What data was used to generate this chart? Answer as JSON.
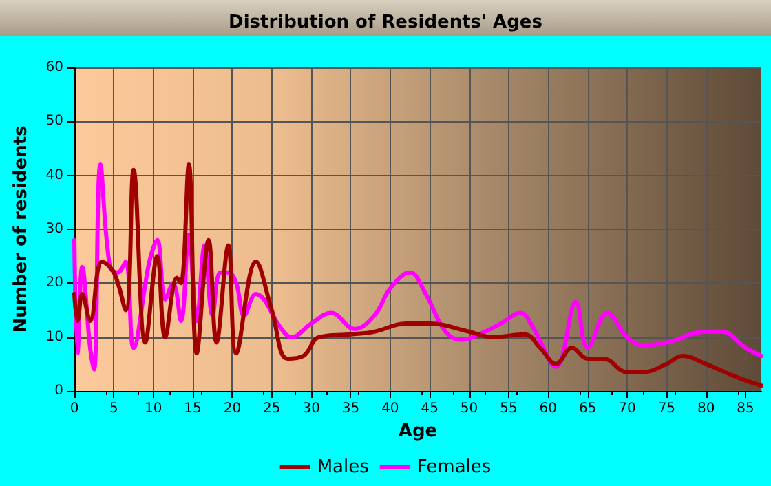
{
  "chart_data": {
    "type": "line",
    "title": "Distribution of Residents' Ages",
    "xlabel": "Age",
    "ylabel": "Number of residents",
    "xlim": [
      0,
      87
    ],
    "xticks": [
      0,
      5,
      10,
      15,
      20,
      25,
      30,
      35,
      40,
      45,
      50,
      55,
      60,
      65,
      70,
      75,
      80,
      85
    ],
    "ylim": [
      0,
      60
    ],
    "yticks": [
      0,
      10,
      20,
      30,
      40,
      50,
      60
    ],
    "grid": true,
    "legend": "bottom",
    "marker": "none",
    "line_style": "solid",
    "series": [
      {
        "name": "Males",
        "color": "#a00000",
        "x": [
          0,
          0.4,
          1,
          2,
          3.5,
          5,
          6.5,
          7.5,
          9,
          10.5,
          11.5,
          13,
          13.5,
          14.5,
          15.5,
          17,
          18,
          19.5,
          20.5,
          23,
          25,
          27,
          29,
          31,
          35,
          38,
          42,
          45,
          50,
          53,
          57,
          59,
          61,
          63,
          65,
          67,
          70,
          72,
          75,
          77,
          80,
          84,
          87
        ],
        "values": [
          18,
          13,
          18,
          13,
          24,
          22,
          15,
          41,
          9,
          25,
          10,
          21,
          20,
          42,
          7,
          28,
          9,
          27,
          7,
          24,
          15,
          6,
          6.5,
          10,
          10.5,
          11,
          12.5,
          12.5,
          11,
          10,
          10.5,
          8,
          5,
          8,
          6,
          6,
          3.5,
          3.5,
          5,
          6.5,
          5,
          2.5,
          1
        ]
      },
      {
        "name": "Females",
        "color": "#ff00ff",
        "x": [
          0,
          0.4,
          1,
          2,
          2.5,
          3.3,
          4.5,
          5.5,
          6.5,
          7.5,
          9.5,
          10.5,
          11.5,
          12.5,
          13.5,
          14.5,
          15.5,
          16.5,
          17.5,
          18.5,
          19.5,
          20.5,
          21.5,
          23,
          24,
          26,
          27.5,
          30,
          32.5,
          35.5,
          38,
          40,
          42.5,
          44.5,
          47,
          49,
          52,
          54,
          56.5,
          58,
          61,
          63.5,
          65,
          67.5,
          70,
          72,
          75,
          80,
          82,
          85,
          87
        ],
        "values": [
          28,
          7,
          23,
          8,
          4,
          42,
          23,
          22,
          24,
          8,
          24,
          28,
          17,
          20,
          13,
          29,
          13,
          27,
          14,
          22,
          22,
          20,
          14,
          18,
          17,
          12,
          10,
          12.5,
          14.5,
          11.5,
          14,
          19,
          22,
          18,
          11,
          9.5,
          11,
          12.5,
          14.5,
          12,
          4.5,
          16.5,
          8,
          14.5,
          10,
          8.5,
          9,
          11,
          11,
          8,
          6.5
        ]
      }
    ]
  }
}
